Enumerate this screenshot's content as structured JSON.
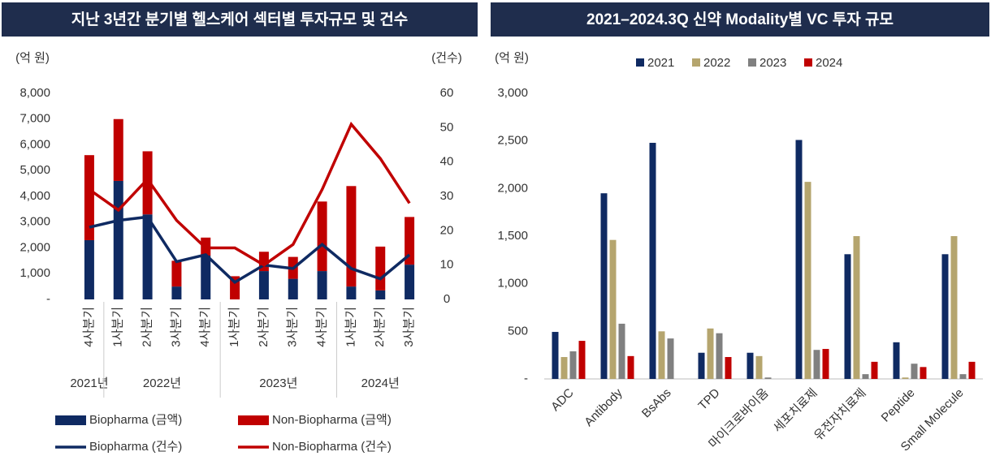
{
  "chart_data": [
    {
      "type": "combo",
      "title": "지난 3년간 분기별 헬스케어 섹터별 투자규모 및 건수",
      "y_label": "(억 원)",
      "y2_label": "(건수)",
      "categories": [
        "4사분기",
        "1사분기",
        "2사분기",
        "3사분기",
        "4사분기",
        "1사분기",
        "2사분기",
        "3사분기",
        "4사분기",
        "1사분기",
        "2사분기",
        "3사분기"
      ],
      "groups": [
        "2021년",
        "2022년",
        "2023년",
        "2024년"
      ],
      "series": [
        {
          "name": "Biopharma (금액)",
          "type": "bar",
          "color": "#0f2a62",
          "values": [
            2300,
            4600,
            3300,
            500,
            1700,
            0,
            1100,
            800,
            1100,
            500,
            350,
            1350
          ]
        },
        {
          "name": "Non-Biopharma (금액)",
          "type": "bar",
          "color": "#c00000",
          "values": [
            3300,
            2400,
            2450,
            1000,
            700,
            900,
            750,
            850,
            2700,
            3900,
            1700,
            1850
          ]
        },
        {
          "name": "Biopharma (건수)",
          "type": "line",
          "axis": "y2",
          "color": "#0f2a62",
          "values": [
            21,
            23,
            24,
            11,
            13,
            5,
            10,
            9,
            16,
            9,
            6,
            13
          ]
        },
        {
          "name": "Non-Biopharma (건수)",
          "type": "line",
          "axis": "y2",
          "color": "#c00000",
          "values": [
            32,
            26,
            35,
            23,
            15,
            15,
            10,
            16,
            32,
            51,
            41,
            28
          ]
        }
      ],
      "ylim": [
        0,
        8000
      ],
      "yticks": [
        {
          "value": 0,
          "label": "-"
        },
        {
          "value": 1000,
          "label": "1,000"
        },
        {
          "value": 2000,
          "label": "2,000"
        },
        {
          "value": 3000,
          "label": "3,000"
        },
        {
          "value": 4000,
          "label": "4,000"
        },
        {
          "value": 5000,
          "label": "5,000"
        },
        {
          "value": 6000,
          "label": "6,000"
        },
        {
          "value": 7000,
          "label": "7,000"
        },
        {
          "value": 8000,
          "label": "8,000"
        }
      ],
      "y2lim": [
        0,
        60
      ],
      "y2ticks": [
        0,
        10,
        20,
        30,
        40,
        50,
        60
      ]
    },
    {
      "type": "bar",
      "title": "2021–2024.3Q 신약 Modality별 VC 투자 규모",
      "y_label": "(억 원)",
      "categories": [
        "ADC",
        "Antibody",
        "BsAbs",
        "TPD",
        "마이크로바이옴",
        "세포치료제",
        "유전자치료제",
        "Peptide",
        "Small Molecule"
      ],
      "series": [
        {
          "name": "2021",
          "color": "#0f2a62",
          "values": [
            494,
            1950,
            2480,
            275,
            275,
            2510,
            1310,
            385,
            1310
          ]
        },
        {
          "name": "2022",
          "color": "#b5a56e",
          "values": [
            230,
            1460,
            500,
            530,
            240,
            2070,
            1500,
            15,
            1500
          ]
        },
        {
          "name": "2023",
          "color": "#808080",
          "values": [
            290,
            580,
            425,
            480,
            15,
            305,
            50,
            160,
            50
          ]
        },
        {
          "name": "2024",
          "color": "#c00000",
          "values": [
            400,
            240,
            0,
            230,
            0,
            315,
            180,
            125,
            180
          ]
        }
      ],
      "ylim": [
        0,
        3000
      ],
      "yticks": [
        {
          "value": 0,
          "label": "-"
        },
        500,
        {
          "value": 1000,
          "label": "1,000"
        },
        {
          "value": 1500,
          "label": "1,500"
        },
        {
          "value": 2000,
          "label": "2,000"
        },
        {
          "value": 2500,
          "label": "2,500"
        },
        {
          "value": 3000,
          "label": "3,000"
        }
      ]
    }
  ]
}
